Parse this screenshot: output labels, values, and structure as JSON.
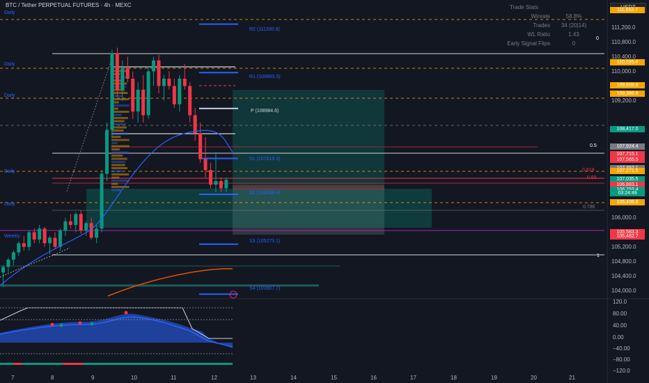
{
  "header": {
    "title": "BTC / Tether PERPETUAL FUTURES · 4h · MEXC",
    "currency": "USDT"
  },
  "trade_stats": {
    "title": "Trade Stats",
    "rows": [
      {
        "k": "Winrate",
        "v": "58.8%"
      },
      {
        "k": "Trades",
        "v": "34 (20|14)"
      },
      {
        "k": "WL Ratio",
        "v": "1.43"
      },
      {
        "k": "Early Signal Flips",
        "v": "0"
      }
    ]
  },
  "colors": {
    "up": "#089981",
    "down": "#f23645",
    "accent": "#2962ff",
    "bg": "#131722"
  },
  "chart_data": {
    "type": "candlestick",
    "title": "BTC / Tether PERPETUAL FUTURES · 4h · MEXC",
    "x_ticks": [
      "7",
      "8",
      "9",
      "10",
      "11",
      "12",
      "13",
      "14",
      "15",
      "16",
      "17",
      "18",
      "19",
      "20",
      "21"
    ],
    "y_ticks": [
      "110,800.0",
      "110,400.0",
      "110,000.0",
      "109,200.0",
      "106,000.0",
      "105,200.0",
      "104,800.0",
      "104,400.0",
      "104,000.0",
      "111,200.0"
    ],
    "ylim": [
      103800,
      111800
    ],
    "candles_ohlc_note": "approximate 4h OHLC read from chart",
    "candles": [
      [
        104500,
        104700,
        104100,
        104650
      ],
      [
        104650,
        104900,
        104500,
        104850
      ],
      [
        104850,
        105100,
        104700,
        105050
      ],
      [
        105050,
        105350,
        104950,
        105300
      ],
      [
        105300,
        105500,
        105100,
        105200
      ],
      [
        105200,
        105650,
        105100,
        105600
      ],
      [
        105600,
        105700,
        105300,
        105400
      ],
      [
        105400,
        105800,
        105300,
        105700
      ],
      [
        105700,
        105750,
        105200,
        105300
      ],
      [
        105300,
        105500,
        105000,
        105450
      ],
      [
        105450,
        105600,
        105150,
        105200
      ],
      [
        105200,
        105700,
        105100,
        105650
      ],
      [
        105650,
        106000,
        105500,
        105900
      ],
      [
        105900,
        106100,
        105700,
        105800
      ],
      [
        105800,
        106150,
        105600,
        106100
      ],
      [
        106100,
        106200,
        105550,
        105650
      ],
      [
        105650,
        105900,
        105500,
        105850
      ],
      [
        105850,
        106000,
        105400,
        105450
      ],
      [
        105450,
        105800,
        105300,
        105700
      ],
      [
        105700,
        107300,
        105600,
        107200
      ],
      [
        107200,
        108600,
        107000,
        108400
      ],
      [
        108400,
        110600,
        108200,
        110500
      ],
      [
        110500,
        110650,
        109300,
        109500
      ],
      [
        109500,
        110300,
        109200,
        110100
      ],
      [
        110100,
        110400,
        109700,
        109800
      ],
      [
        109800,
        110000,
        108700,
        108900
      ],
      [
        108900,
        109700,
        108600,
        109500
      ],
      [
        109500,
        109900,
        108600,
        108800
      ],
      [
        108800,
        110100,
        108700,
        110000
      ],
      [
        110000,
        110400,
        109600,
        110300
      ],
      [
        110300,
        110450,
        109400,
        109600
      ],
      [
        109600,
        109900,
        109200,
        109800
      ],
      [
        109800,
        110000,
        109500,
        109600
      ],
      [
        109600,
        109800,
        109000,
        109100
      ],
      [
        109100,
        109900,
        108900,
        109800
      ],
      [
        109800,
        110200,
        109500,
        109600
      ],
      [
        109600,
        109700,
        108600,
        108800
      ],
      [
        108800,
        109000,
        108100,
        108300
      ],
      [
        108300,
        108600,
        107500,
        107600
      ],
      [
        107600,
        108200,
        107100,
        107300
      ],
      [
        107300,
        107500,
        106800,
        106900
      ],
      [
        106900,
        107800,
        106700,
        107000
      ],
      [
        107000,
        107100,
        106700,
        106800
      ],
      [
        106800,
        107100,
        106700,
        107035
      ]
    ],
    "last_price": "107,035.5",
    "countdown": "03:24:49"
  },
  "price_tags": [
    {
      "text": "111,662.7",
      "color": "#f7a600",
      "price": 111662.7
    },
    {
      "text": "110,235.4",
      "color": "#f7a600",
      "price": 110235.4
    },
    {
      "text": "109,609.8",
      "color": "#f7a600",
      "price": 109609.8
    },
    {
      "text": "109,386.9",
      "color": "#f7a600",
      "price": 109386.9
    },
    {
      "text": "108,417.0",
      "color": "#089981",
      "price": 108417.0
    },
    {
      "text": "107,924.4",
      "color": "#787b86",
      "price": 107924.4
    },
    {
      "text": "107,715.1",
      "color": "#f23645",
      "price": 107715.1
    },
    {
      "text": "107,565.5",
      "color": "#f23645",
      "price": 107565.5
    },
    {
      "text": "107,352.1",
      "color": "#787b86",
      "price": 107352.1
    },
    {
      "text": "107,271.5",
      "color": "#f7a600",
      "price": 107271.5
    },
    {
      "text": "107,035.5",
      "color": "#089981",
      "price": 107035.5
    },
    {
      "text": "106,883.1",
      "color": "#f23645",
      "price": 106883.1
    },
    {
      "text": "106,753.4",
      "color": "#089981",
      "price": 106753.4
    },
    {
      "text": "03:24:49",
      "color": "#089981",
      "price": 106650.0
    },
    {
      "text": "106,406.8",
      "color": "#f7a600",
      "price": 106406.8
    },
    {
      "text": "105,583.3",
      "color": "#f23645",
      "price": 105583.3
    },
    {
      "text": "105,482.7",
      "color": "#f23645",
      "price": 105482.7
    }
  ],
  "pivots": [
    {
      "text": "R2 (111330.8)",
      "price": 111330.8
    },
    {
      "text": "R1 (109965.5)",
      "price": 109965.5
    },
    {
      "text": "P (108984.6)",
      "price": 108984.6
    },
    {
      "text": "S1 (107619.3)",
      "price": 107619.3
    },
    {
      "text": "S2 (106638.4)",
      "price": 106638.4
    },
    {
      "text": "S3 (105273.1)",
      "price": 105273.1
    },
    {
      "text": "S4 (103907.7)",
      "price": 103907.7
    }
  ],
  "daily_labels": [
    {
      "text": "Daily",
      "price": 111600
    },
    {
      "text": "Daily",
      "price": 110180
    },
    {
      "text": "Daily",
      "price": 109320
    },
    {
      "text": "Daily",
      "price": 107240
    },
    {
      "text": "Daily",
      "price": 106360
    },
    {
      "text": "Weekly",
      "price": 105480
    }
  ],
  "fib_labels": [
    {
      "text": "0",
      "price": 110880,
      "color": "#ffffff"
    },
    {
      "text": "0.5",
      "price": 107960,
      "color": "#ffffff"
    },
    {
      "text": "0.618",
      "price": 107280,
      "color": "#f23645"
    },
    {
      "text": "0.65",
      "price": 107070,
      "color": "#f23645"
    },
    {
      "text": "0.786",
      "price": 106280,
      "color": "#787b86"
    },
    {
      "text": "1",
      "price": 104950,
      "color": "#ffffff"
    }
  ],
  "osc_ticks": [
    "120.0",
    "80.00",
    "40.00",
    "0.00",
    "−40.00",
    "−80.00",
    "−120.0"
  ]
}
